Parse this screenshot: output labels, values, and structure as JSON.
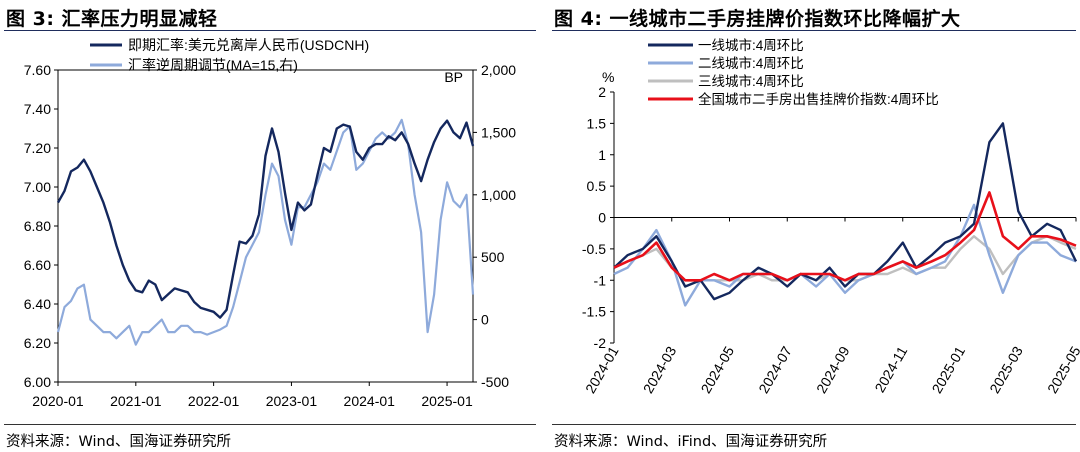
{
  "figures": [
    {
      "title": "图 3:  汇率压力明显减轻",
      "source": "资料来源：Wind、国海证券研究所"
    },
    {
      "title": "图 4:  一线城市二手房挂牌价指数环比降幅扩大",
      "source": "资料来源：Wind、iFind、国海证券研究所"
    }
  ],
  "chart_data": [
    {
      "type": "line",
      "unit_label_right": "BP",
      "legend_position": "top-left",
      "grid": false,
      "x_ticks": [
        "2020-01",
        "2021-01",
        "2022-01",
        "2023-01",
        "2024-01",
        "2025-01"
      ],
      "y_left_ticks": [
        "6.00",
        "6.20",
        "6.40",
        "6.60",
        "6.80",
        "7.00",
        "7.20",
        "7.40",
        "7.60"
      ],
      "y_left_lim": [
        6.0,
        7.6
      ],
      "y_right_ticks": [
        "-500",
        "0",
        "500",
        "1,000",
        "1,500",
        "2,000"
      ],
      "y_right_lim": [
        -500,
        2000
      ],
      "x_range": [
        "2020-01",
        "2025-05"
      ],
      "series": [
        {
          "name": "即期汇率:美元兑离岸人民币(USDCNH)",
          "axis": "left",
          "color": "#14285e",
          "x": [
            "2020-01",
            "2020-02",
            "2020-03",
            "2020-04",
            "2020-05",
            "2020-06",
            "2020-07",
            "2020-08",
            "2020-09",
            "2020-10",
            "2020-11",
            "2020-12",
            "2021-01",
            "2021-02",
            "2021-03",
            "2021-04",
            "2021-05",
            "2021-06",
            "2021-07",
            "2021-08",
            "2021-09",
            "2021-10",
            "2021-11",
            "2021-12",
            "2022-01",
            "2022-02",
            "2022-03",
            "2022-04",
            "2022-05",
            "2022-06",
            "2022-07",
            "2022-08",
            "2022-09",
            "2022-10",
            "2022-11",
            "2022-12",
            "2023-01",
            "2023-02",
            "2023-03",
            "2023-04",
            "2023-05",
            "2023-06",
            "2023-07",
            "2023-08",
            "2023-09",
            "2023-10",
            "2023-11",
            "2023-12",
            "2024-01",
            "2024-02",
            "2024-03",
            "2024-04",
            "2024-05",
            "2024-06",
            "2024-07",
            "2024-08",
            "2024-09",
            "2024-10",
            "2024-11",
            "2024-12",
            "2025-01",
            "2025-02",
            "2025-03",
            "2025-04",
            "2025-05"
          ],
          "values": [
            6.92,
            6.98,
            7.08,
            7.1,
            7.14,
            7.08,
            7.0,
            6.92,
            6.82,
            6.7,
            6.6,
            6.52,
            6.47,
            6.46,
            6.52,
            6.5,
            6.42,
            6.45,
            6.48,
            6.47,
            6.46,
            6.41,
            6.38,
            6.37,
            6.36,
            6.33,
            6.37,
            6.55,
            6.72,
            6.71,
            6.75,
            6.86,
            7.16,
            7.3,
            7.18,
            6.97,
            6.78,
            6.92,
            6.88,
            6.91,
            7.06,
            7.2,
            7.18,
            7.3,
            7.32,
            7.31,
            7.18,
            7.14,
            7.2,
            7.22,
            7.22,
            7.26,
            7.24,
            7.28,
            7.22,
            7.12,
            7.03,
            7.14,
            7.23,
            7.3,
            7.34,
            7.28,
            7.25,
            7.33,
            7.21
          ]
        },
        {
          "name": "汇率逆周期调节(MA=15,右)",
          "axis": "right",
          "color": "#8eaadb",
          "x": [
            "2020-01",
            "2020-02",
            "2020-03",
            "2020-04",
            "2020-05",
            "2020-06",
            "2020-07",
            "2020-08",
            "2020-09",
            "2020-10",
            "2020-11",
            "2020-12",
            "2021-01",
            "2021-02",
            "2021-03",
            "2021-04",
            "2021-05",
            "2021-06",
            "2021-07",
            "2021-08",
            "2021-09",
            "2021-10",
            "2021-11",
            "2021-12",
            "2022-01",
            "2022-02",
            "2022-03",
            "2022-04",
            "2022-05",
            "2022-06",
            "2022-07",
            "2022-08",
            "2022-09",
            "2022-10",
            "2022-11",
            "2022-12",
            "2023-01",
            "2023-02",
            "2023-03",
            "2023-04",
            "2023-05",
            "2023-06",
            "2023-07",
            "2023-08",
            "2023-09",
            "2023-10",
            "2023-11",
            "2023-12",
            "2024-01",
            "2024-02",
            "2024-03",
            "2024-04",
            "2024-05",
            "2024-06",
            "2024-07",
            "2024-08",
            "2024-09",
            "2024-10",
            "2024-11",
            "2024-12",
            "2025-01",
            "2025-02",
            "2025-03",
            "2025-04",
            "2025-05"
          ],
          "values": [
            -100,
            100,
            150,
            250,
            280,
            0,
            -50,
            -100,
            -100,
            -150,
            -100,
            -50,
            -200,
            -100,
            -100,
            -50,
            0,
            -100,
            -100,
            -50,
            -50,
            -100,
            -100,
            -120,
            -100,
            -80,
            -50,
            100,
            300,
            500,
            600,
            700,
            1000,
            1250,
            1150,
            800,
            600,
            900,
            900,
            1000,
            1100,
            1250,
            1200,
            1350,
            1500,
            1550,
            1200,
            1250,
            1350,
            1450,
            1500,
            1450,
            1500,
            1600,
            1400,
            1000,
            700,
            -100,
            200,
            800,
            1100,
            950,
            900,
            1000,
            200
          ]
        }
      ]
    },
    {
      "type": "line",
      "unit_label": "%",
      "legend_position": "top-left",
      "grid": false,
      "x_ticks": [
        "2024-01",
        "2024-03",
        "2024-05",
        "2024-07",
        "2024-09",
        "2024-11",
        "2025-01",
        "2025-03",
        "2025-05"
      ],
      "y_ticks": [
        "-2",
        "-1.5",
        "-1",
        "-0.5",
        "0",
        "0.5",
        "1",
        "1.5",
        "2"
      ],
      "ylim": [
        -2,
        2
      ],
      "x_range": [
        "2024-01",
        "2025-05"
      ],
      "series": [
        {
          "name": "一线城市:4周环比",
          "color": "#14285e",
          "x": [
            "2024-01",
            "2024-01-15",
            "2024-02",
            "2024-02-15",
            "2024-03",
            "2024-03-15",
            "2024-04",
            "2024-04-15",
            "2024-05",
            "2024-05-15",
            "2024-06",
            "2024-06-15",
            "2024-07",
            "2024-07-15",
            "2024-08",
            "2024-08-15",
            "2024-09",
            "2024-09-15",
            "2024-10",
            "2024-10-15",
            "2024-11",
            "2024-11-15",
            "2024-12",
            "2024-12-15",
            "2025-01",
            "2025-01-15",
            "2025-02",
            "2025-02-15",
            "2025-03",
            "2025-03-15",
            "2025-04",
            "2025-04-15",
            "2025-05"
          ],
          "values": [
            -0.8,
            -0.6,
            -0.5,
            -0.3,
            -0.7,
            -1.1,
            -1.0,
            -1.3,
            -1.2,
            -1.0,
            -0.8,
            -0.9,
            -1.1,
            -0.9,
            -1.0,
            -0.8,
            -1.1,
            -0.9,
            -0.9,
            -0.7,
            -0.4,
            -0.8,
            -0.6,
            -0.4,
            -0.3,
            -0.1,
            1.2,
            1.5,
            0.1,
            -0.3,
            -0.1,
            -0.2,
            -0.7
          ]
        },
        {
          "name": "二线城市:4周环比",
          "color": "#8eaadb",
          "x": [
            "2024-01",
            "2024-01-15",
            "2024-02",
            "2024-02-15",
            "2024-03",
            "2024-03-15",
            "2024-04",
            "2024-04-15",
            "2024-05",
            "2024-05-15",
            "2024-06",
            "2024-06-15",
            "2024-07",
            "2024-07-15",
            "2024-08",
            "2024-08-15",
            "2024-09",
            "2024-09-15",
            "2024-10",
            "2024-10-15",
            "2024-11",
            "2024-11-15",
            "2024-12",
            "2024-12-15",
            "2025-01",
            "2025-01-15",
            "2025-02",
            "2025-02-15",
            "2025-03",
            "2025-03-15",
            "2025-04",
            "2025-04-15",
            "2025-05"
          ],
          "values": [
            -0.9,
            -0.8,
            -0.5,
            -0.2,
            -0.7,
            -1.4,
            -1.0,
            -1.0,
            -1.1,
            -0.9,
            -0.9,
            -0.9,
            -1.0,
            -0.9,
            -1.1,
            -0.9,
            -1.2,
            -1.0,
            -0.9,
            -0.8,
            -0.7,
            -0.9,
            -0.8,
            -0.7,
            -0.3,
            0.2,
            -0.6,
            -1.2,
            -0.6,
            -0.4,
            -0.4,
            -0.6,
            -0.7
          ]
        },
        {
          "name": "三线城市:4周环比",
          "color": "#bfbfbf",
          "x": [
            "2024-01",
            "2024-01-15",
            "2024-02",
            "2024-02-15",
            "2024-03",
            "2024-03-15",
            "2024-04",
            "2024-04-15",
            "2024-05",
            "2024-05-15",
            "2024-06",
            "2024-06-15",
            "2024-07",
            "2024-07-15",
            "2024-08",
            "2024-08-15",
            "2024-09",
            "2024-09-15",
            "2024-10",
            "2024-10-15",
            "2024-11",
            "2024-11-15",
            "2024-12",
            "2024-12-15",
            "2025-01",
            "2025-01-15",
            "2025-02",
            "2025-02-15",
            "2025-03",
            "2025-03-15",
            "2025-04",
            "2025-04-15",
            "2025-05"
          ],
          "values": [
            -0.8,
            -0.7,
            -0.6,
            -0.5,
            -0.8,
            -1.0,
            -1.0,
            -1.0,
            -1.0,
            -1.0,
            -0.9,
            -1.0,
            -1.0,
            -0.9,
            -1.0,
            -0.9,
            -1.0,
            -1.0,
            -0.9,
            -0.9,
            -0.8,
            -0.9,
            -0.8,
            -0.8,
            -0.5,
            -0.3,
            -0.5,
            -0.9,
            -0.6,
            -0.4,
            -0.3,
            -0.4,
            -0.5
          ]
        },
        {
          "name": "全国城市二手房出售挂牌价指数:4周环比",
          "color": "#e8101a",
          "x": [
            "2024-01",
            "2024-01-15",
            "2024-02",
            "2024-02-15",
            "2024-03",
            "2024-03-15",
            "2024-04",
            "2024-04-15",
            "2024-05",
            "2024-05-15",
            "2024-06",
            "2024-06-15",
            "2024-07",
            "2024-07-15",
            "2024-08",
            "2024-08-15",
            "2024-09",
            "2024-09-15",
            "2024-10",
            "2024-10-15",
            "2024-11",
            "2024-11-15",
            "2024-12",
            "2024-12-15",
            "2025-01",
            "2025-01-15",
            "2025-02",
            "2025-02-15",
            "2025-03",
            "2025-03-15",
            "2025-04",
            "2025-04-15",
            "2025-05"
          ],
          "values": [
            -0.8,
            -0.7,
            -0.6,
            -0.4,
            -0.8,
            -1.0,
            -1.0,
            -0.9,
            -1.0,
            -0.9,
            -0.9,
            -0.9,
            -1.0,
            -0.9,
            -0.9,
            -0.9,
            -1.0,
            -0.9,
            -0.9,
            -0.8,
            -0.7,
            -0.8,
            -0.7,
            -0.6,
            -0.4,
            -0.2,
            0.4,
            -0.3,
            -0.5,
            -0.3,
            -0.3,
            -0.35,
            -0.45
          ]
        }
      ]
    }
  ]
}
